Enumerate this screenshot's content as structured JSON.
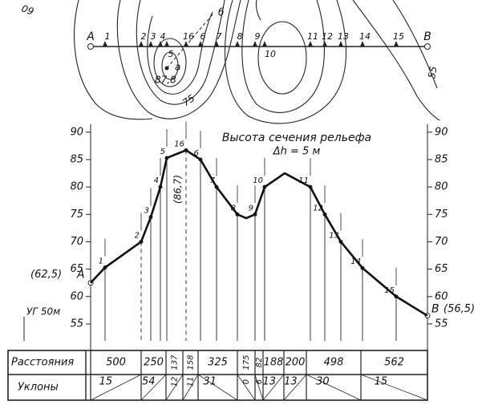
{
  "map": {
    "contour_labels": [
      "60",
      "75",
      "55"
    ],
    "summit_label": "a",
    "summit_elevation": "87,8",
    "direction_label": "б"
  },
  "profile": {
    "title": "Высота сечения рельефа",
    "interval": "Δh = 5 м",
    "scale_label": "УГ 50м",
    "ylim": [
      52.5,
      91
    ],
    "yticks": [
      90,
      85,
      80,
      75,
      70,
      65,
      60,
      55
    ],
    "points": [
      {
        "label": "A",
        "value": 62.5,
        "annotation": "(62,5)"
      },
      {
        "label": "1",
        "value": 65.3
      },
      {
        "label": "2",
        "value": 70
      },
      {
        "label": "3",
        "value": 74.5
      },
      {
        "label": "4",
        "value": 80
      },
      {
        "label": "5",
        "value": 85.3
      },
      {
        "label": "16",
        "value": 86.7,
        "annotation": "(86,7)"
      },
      {
        "label": "6",
        "value": 85
      },
      {
        "label": "7",
        "value": 80
      },
      {
        "label": "8",
        "value": 75
      },
      {
        "label": null,
        "value": 74.3
      },
      {
        "label": "9",
        "value": 75
      },
      {
        "label": "10",
        "value": 80
      },
      {
        "label": null,
        "value": 82.5
      },
      {
        "label": "11",
        "value": 80
      },
      {
        "label": "12",
        "value": 75
      },
      {
        "label": "13",
        "value": 70
      },
      {
        "label": "14",
        "value": 65.2
      },
      {
        "label": "15",
        "value": 60
      },
      {
        "label": "B",
        "value": 56.5,
        "annotation": "(56,5)"
      }
    ]
  },
  "table": {
    "rows": [
      {
        "header": "Расстояния",
        "cells": [
          500,
          250,
          137,
          158,
          325,
          175,
          82,
          188,
          200,
          498,
          562
        ]
      },
      {
        "header": "Уклоны",
        "cells": [
          15,
          54,
          12,
          11,
          31,
          0,
          6,
          13,
          13,
          30,
          15
        ]
      }
    ]
  }
}
